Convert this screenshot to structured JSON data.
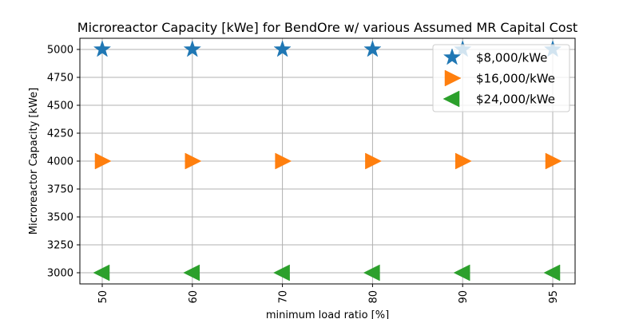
{
  "chart_data": {
    "type": "scatter",
    "title": "Microreactor Capacity [kWe] for BendOre w/ various Assumed MR Capital Cost",
    "xlabel": "minimum load ratio [%]",
    "ylabel": "Microreactor Capacity [kWe]",
    "categories": [
      "50",
      "60",
      "70",
      "80",
      "90",
      "95"
    ],
    "ylim": [
      2900,
      5100
    ],
    "yticks": [
      3000,
      3250,
      3500,
      3750,
      4000,
      4250,
      4500,
      4750,
      5000
    ],
    "ytick_labels": [
      "3000",
      "3250",
      "3500",
      "3750",
      "4000",
      "4250",
      "4500",
      "4750",
      "5000"
    ],
    "grid": true,
    "legend_position": "top-right",
    "series": [
      {
        "name": "$8,000/kWe",
        "marker": "star",
        "color": "#1f77b4",
        "values": [
          5000,
          5000,
          5000,
          5000,
          5000,
          5000
        ]
      },
      {
        "name": "$16,000/kWe",
        "marker": "triangle-right",
        "color": "#ff7f0e",
        "values": [
          4000,
          4000,
          4000,
          4000,
          4000,
          4000
        ]
      },
      {
        "name": "$24,000/kWe",
        "marker": "triangle-left",
        "color": "#2ca02c",
        "values": [
          3000,
          3000,
          3000,
          3000,
          3000,
          3000
        ]
      }
    ]
  }
}
